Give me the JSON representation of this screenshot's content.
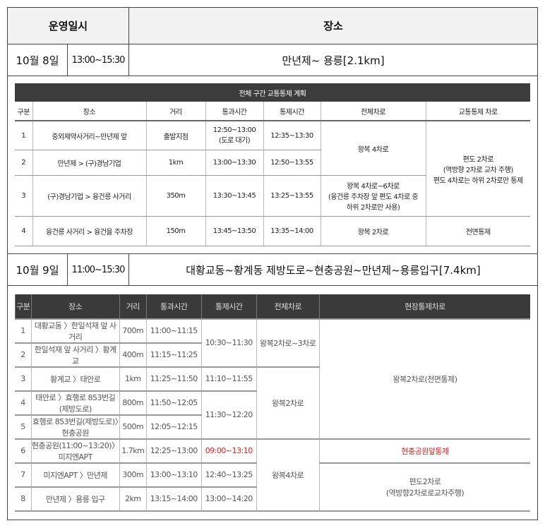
{
  "header": {
    "date_label": "운영일시",
    "place_label": "장소"
  },
  "day1": {
    "date": "10월  8일",
    "time": "13:00~15:30",
    "route": "만년제~  용릉[2.1km]"
  },
  "day2": {
    "date": "10월  9일",
    "time": "11:00~15:30",
    "route": "대황교동~황계동  제방도로~현충공원~만년제~용릉입구[7.4km]"
  },
  "table1": {
    "title": "전체 구간 교통통제 계획",
    "headers": [
      "구분",
      "장소",
      "거리",
      "통과시간",
      "통제시간",
      "전체차로",
      "교통통제 차로"
    ],
    "rows": [
      {
        "no": "1",
        "place": "중외제약사거리~만년제 앞",
        "dist": "출발지점",
        "pass": "12:50~13:00",
        "pass_note": "(도로 대기)",
        "ctrl": "12:35~13:30"
      },
      {
        "no": "2",
        "place": "만년제 > (구)경남기업",
        "dist": "1km",
        "pass": "13:00~13:30",
        "ctrl": "12:50~13:55"
      },
      {
        "no": "3",
        "place": "(구)경남기업 > 융건릉 사거리",
        "dist": "350m",
        "pass": "13:30~13:45",
        "ctrl": "13:25~13:55"
      },
      {
        "no": "4",
        "place": "융건릉 사거리 > 융건을 주차장",
        "dist": "150m",
        "pass": "13:45~13:50",
        "ctrl": "13:35~14:00"
      }
    ],
    "lanes": [
      "왕복 4차로",
      "왕복 4차로~6차로",
      "(융건릉 주차장 앞 편도 4차로 중",
      "하위 2차로만 사용)",
      "왕복 2차로"
    ],
    "control": [
      "편도 2차로",
      "(역방향 2차로 교차 주행)",
      "편도 4차로는 하위 2차로만 통제",
      "전면통제"
    ]
  },
  "table2": {
    "headers": [
      "구분",
      "장소",
      "거리",
      "통과시간",
      "통제시간",
      "전체차로",
      "현장통제차로"
    ],
    "rows": [
      {
        "no": "1",
        "place": "대황교동 〉한일석재 앞 사거리",
        "dist": "700m",
        "pass": "11:00~11:15"
      },
      {
        "no": "2",
        "place": "한일석재 앞 사거리 〉황계교",
        "dist": "400m",
        "pass": "11:15~11:25"
      },
      {
        "no": "3",
        "place": "황계교 〉태안로",
        "dist": "1km",
        "pass": "11:25~11:50"
      },
      {
        "no": "4",
        "place": "태안로 〉효행로 853번길(제방도로)",
        "dist": "800m",
        "pass": "11:50~12:05"
      },
      {
        "no": "5",
        "place": "효행로 853번길(제방도로)〉현충공원",
        "dist": "500m",
        "pass": "12:05~12:15"
      },
      {
        "no": "6",
        "place": "현충공원(11:00~13:20)〉미지엔APT",
        "dist": "1.7km",
        "pass": "12:25~13:00"
      },
      {
        "no": "7",
        "place": "미지엔APT 〉만년제",
        "dist": "300m",
        "pass": "13:00~13:10"
      },
      {
        "no": "8",
        "place": "만년제 〉용릉 입구",
        "dist": "2km",
        "pass": "13:15~14:00"
      }
    ],
    "ctrl": [
      "10:30~11:30",
      "11:10~11:55",
      "11:30~12:20",
      "09:00~13:10",
      "12:40~13:25",
      "13:00~14:20"
    ],
    "lanes": [
      "왕복2차로~3차로",
      "왕복2차로",
      "왕복4차로"
    ],
    "control": [
      "왕복2차로(전면통제)",
      "현충공원앞통제",
      "편도2차로",
      "(역방향2차로로교차주행)"
    ],
    "highlight_color": "#e02020"
  }
}
